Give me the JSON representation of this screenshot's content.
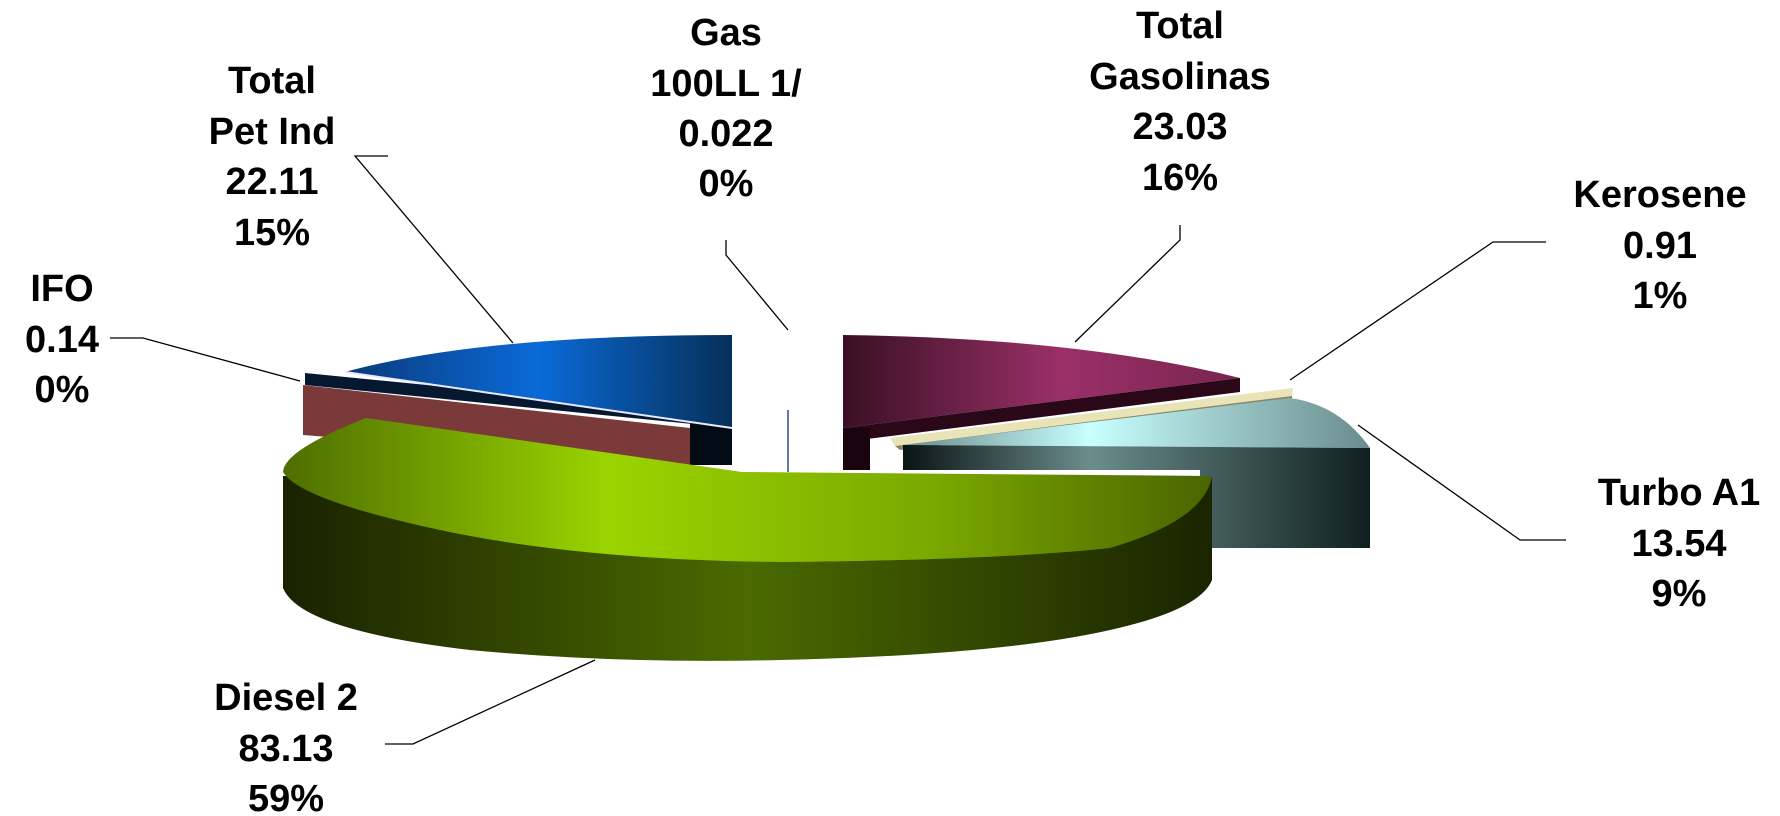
{
  "chart_data": {
    "type": "pie",
    "style": "3d-exploded",
    "title": "",
    "legend": "none",
    "slices": [
      {
        "label": "Gas 100LL 1/",
        "value": 0.022,
        "percent": "0%",
        "value_text": "0.022",
        "label_lines": [
          "Gas",
          "100LL 1/"
        ],
        "color": "#ffffff"
      },
      {
        "label": "Total Gasolinas",
        "value": 23.03,
        "percent": "16%",
        "value_text": "23.03",
        "label_lines": [
          "Total",
          "Gasolinas"
        ],
        "color": "#8a2a5e"
      },
      {
        "label": "Kerosene",
        "value": 0.91,
        "percent": "1%",
        "value_text": "0.91",
        "label_lines": [
          "Kerosene"
        ],
        "color": "#e8e4b8"
      },
      {
        "label": "Turbo A1",
        "value": 13.54,
        "percent": "9%",
        "value_text": "13.54",
        "label_lines": [
          "Turbo A1"
        ],
        "color": "#b8f4f4"
      },
      {
        "label": "Diesel 2",
        "value": 83.13,
        "percent": "59%",
        "value_text": "83.13",
        "label_lines": [
          "Diesel 2"
        ],
        "color": "#8ec800"
      },
      {
        "label": "IFO",
        "value": 0.14,
        "percent": "0%",
        "value_text": "0.14",
        "label_lines": [
          "IFO"
        ],
        "color": "#8a4040"
      },
      {
        "label": "Total Pet Ind",
        "value": 22.11,
        "percent": "15%",
        "value_text": "22.11",
        "label_lines": [
          "Total",
          "Pet Ind"
        ],
        "color": "#0a6ad0"
      }
    ]
  }
}
